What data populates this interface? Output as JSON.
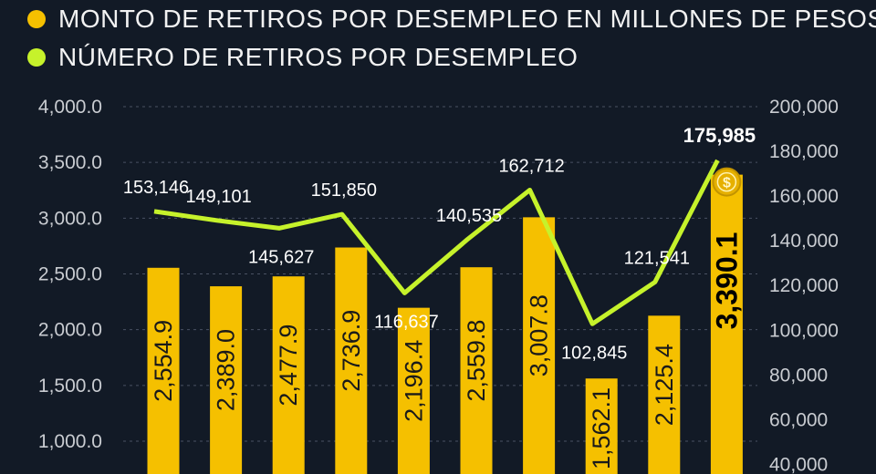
{
  "legend": [
    {
      "label": "MONTO DE RETIROS POR DESEMPLEO EN MILLONES DE PESOS",
      "color": "#f5c000"
    },
    {
      "label": "NÚMERO DE RETIROS POR DESEMPLEO",
      "color": "#c6f22b"
    }
  ],
  "chart_data": {
    "type": "bar",
    "series": [
      {
        "name": "MONTO DE RETIROS POR DESEMPLEO EN MILLONES DE PESOS",
        "kind": "bar",
        "axis": "left",
        "color": "#f5c000",
        "values": [
          2554.9,
          2389.0,
          2477.9,
          2736.9,
          2196.4,
          2559.8,
          3007.8,
          1562.1,
          2125.4,
          3390.1
        ],
        "labels": [
          "2,554.9",
          "2,389.0",
          "2,477.9",
          "2,736.9",
          "2,196.4",
          "2,559.8",
          "3,007.8",
          "1,562.1",
          "2,125.4",
          "3,390.1"
        ]
      },
      {
        "name": "NÚMERO DE RETIROS POR DESEMPLEO",
        "kind": "line",
        "axis": "right",
        "color": "#c6f22b",
        "values": [
          153146,
          149101,
          145627,
          151850,
          116637,
          140535,
          162712,
          102845,
          121541,
          175985
        ],
        "labels": [
          "153,146",
          "149,101",
          "145,627",
          "151,850",
          "116,637",
          "140,535",
          "162,712",
          "102,845",
          "121,541",
          "175,985"
        ]
      }
    ],
    "highlight_index": 9,
    "y_left": {
      "ticks": [
        1000,
        1500,
        2000,
        2500,
        3000,
        3500,
        4000
      ],
      "tick_labels": [
        "1,000.0",
        "1,500.0",
        "2,000.0",
        "2,500.0",
        "3,000.0",
        "3,500.0",
        "4,000.0"
      ]
    },
    "y_right": {
      "ticks": [
        40000,
        60000,
        80000,
        100000,
        120000,
        140000,
        160000,
        180000,
        200000
      ],
      "tick_labels": [
        "40,000",
        "60,000",
        "80,000",
        "100,000",
        "120,000",
        "140,000",
        "160,000",
        "180,000",
        "200,000"
      ]
    },
    "grid": true,
    "legend_position": "top-left",
    "icons": [
      "coin-icon"
    ]
  }
}
